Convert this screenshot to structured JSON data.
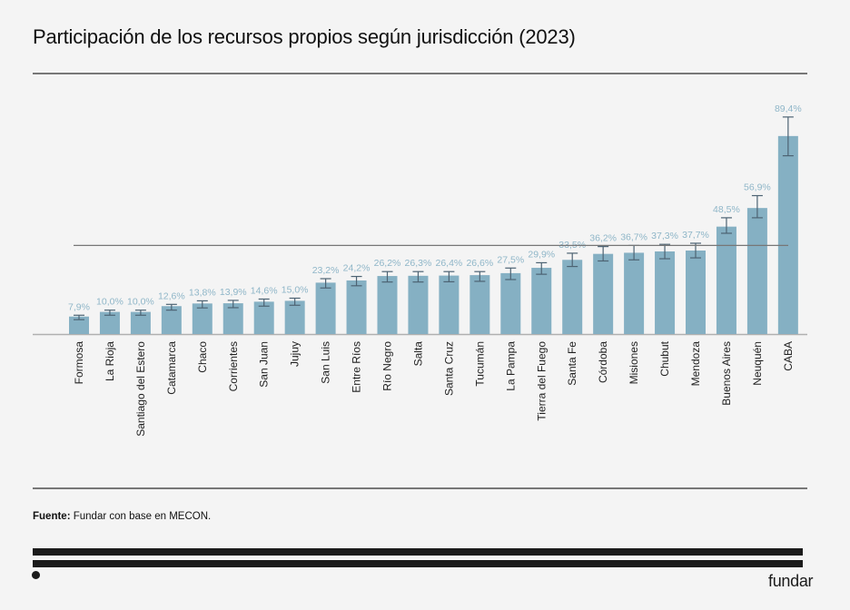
{
  "title": "Participación de los recursos propios según jurisdicción (2023)",
  "source": {
    "label": "Fuente:",
    "text": " Fundar con base en MECON."
  },
  "brand": {
    "logo_text": "fundar",
    "bar_color": "#1b1b1b"
  },
  "colors": {
    "bar": "#85b0c3",
    "error_bar": "#4d6373",
    "label": "#8fb6c8",
    "axis": "#b0b0b0",
    "reference_line": "#777777"
  },
  "chart_data": {
    "type": "bar",
    "title": "Participación de los recursos propios según jurisdicción (2023)",
    "xlabel": "",
    "ylabel": "",
    "ylim": [
      0,
      100
    ],
    "grid": false,
    "legend": "none",
    "reference_line": 40,
    "categories": [
      "Formosa",
      "La Rioja",
      "Santiago del Estero",
      "Catamarca",
      "Chaco",
      "Corrientes",
      "San Juan",
      "Jujuy",
      "San Luis",
      "Entre Ríos",
      "Río Negro",
      "Salta",
      "Santa Cruz",
      "Tucumán",
      "La Pampa",
      "Tierra del Fuego",
      "Santa Fe",
      "Córdoba",
      "Misiones",
      "Chubut",
      "Mendoza",
      "Buenos Aires",
      "Neuquén",
      "CABA"
    ],
    "values": [
      7.9,
      10.0,
      10.0,
      12.6,
      13.8,
      13.9,
      14.6,
      15.0,
      23.2,
      24.2,
      26.2,
      26.3,
      26.4,
      26.6,
      27.5,
      29.9,
      33.5,
      36.2,
      36.7,
      37.3,
      37.7,
      48.5,
      56.9,
      89.4
    ],
    "data_labels": [
      "7,9%",
      "10,0%",
      "10,0%",
      "12,6%",
      "13,8%",
      "13,9%",
      "14,6%",
      "15,0%",
      "23,2%",
      "24,2%",
      "26,2%",
      "26,3%",
      "26,4%",
      "26,6%",
      "27,5%",
      "29,9%",
      "33,5%",
      "36,2%",
      "36,7%",
      "37,3%",
      "37,7%",
      "48,5%",
      "56,9%",
      "89,4%"
    ],
    "error_low": [
      6.5,
      8.5,
      8.5,
      10.8,
      11.8,
      11.9,
      12.6,
      13.0,
      20.8,
      21.8,
      23.5,
      23.5,
      23.6,
      23.8,
      24.6,
      27.0,
      30.5,
      33.0,
      33.5,
      34.0,
      34.4,
      45.5,
      52.5,
      80.5
    ],
    "error_high": [
      8.5,
      10.8,
      10.8,
      13.4,
      15.0,
      15.2,
      15.8,
      16.2,
      25.0,
      26.0,
      28.2,
      28.2,
      28.2,
      28.2,
      29.8,
      32.2,
      36.5,
      39.5,
      40.0,
      40.5,
      41.0,
      52.5,
      62.5,
      98.0
    ]
  }
}
